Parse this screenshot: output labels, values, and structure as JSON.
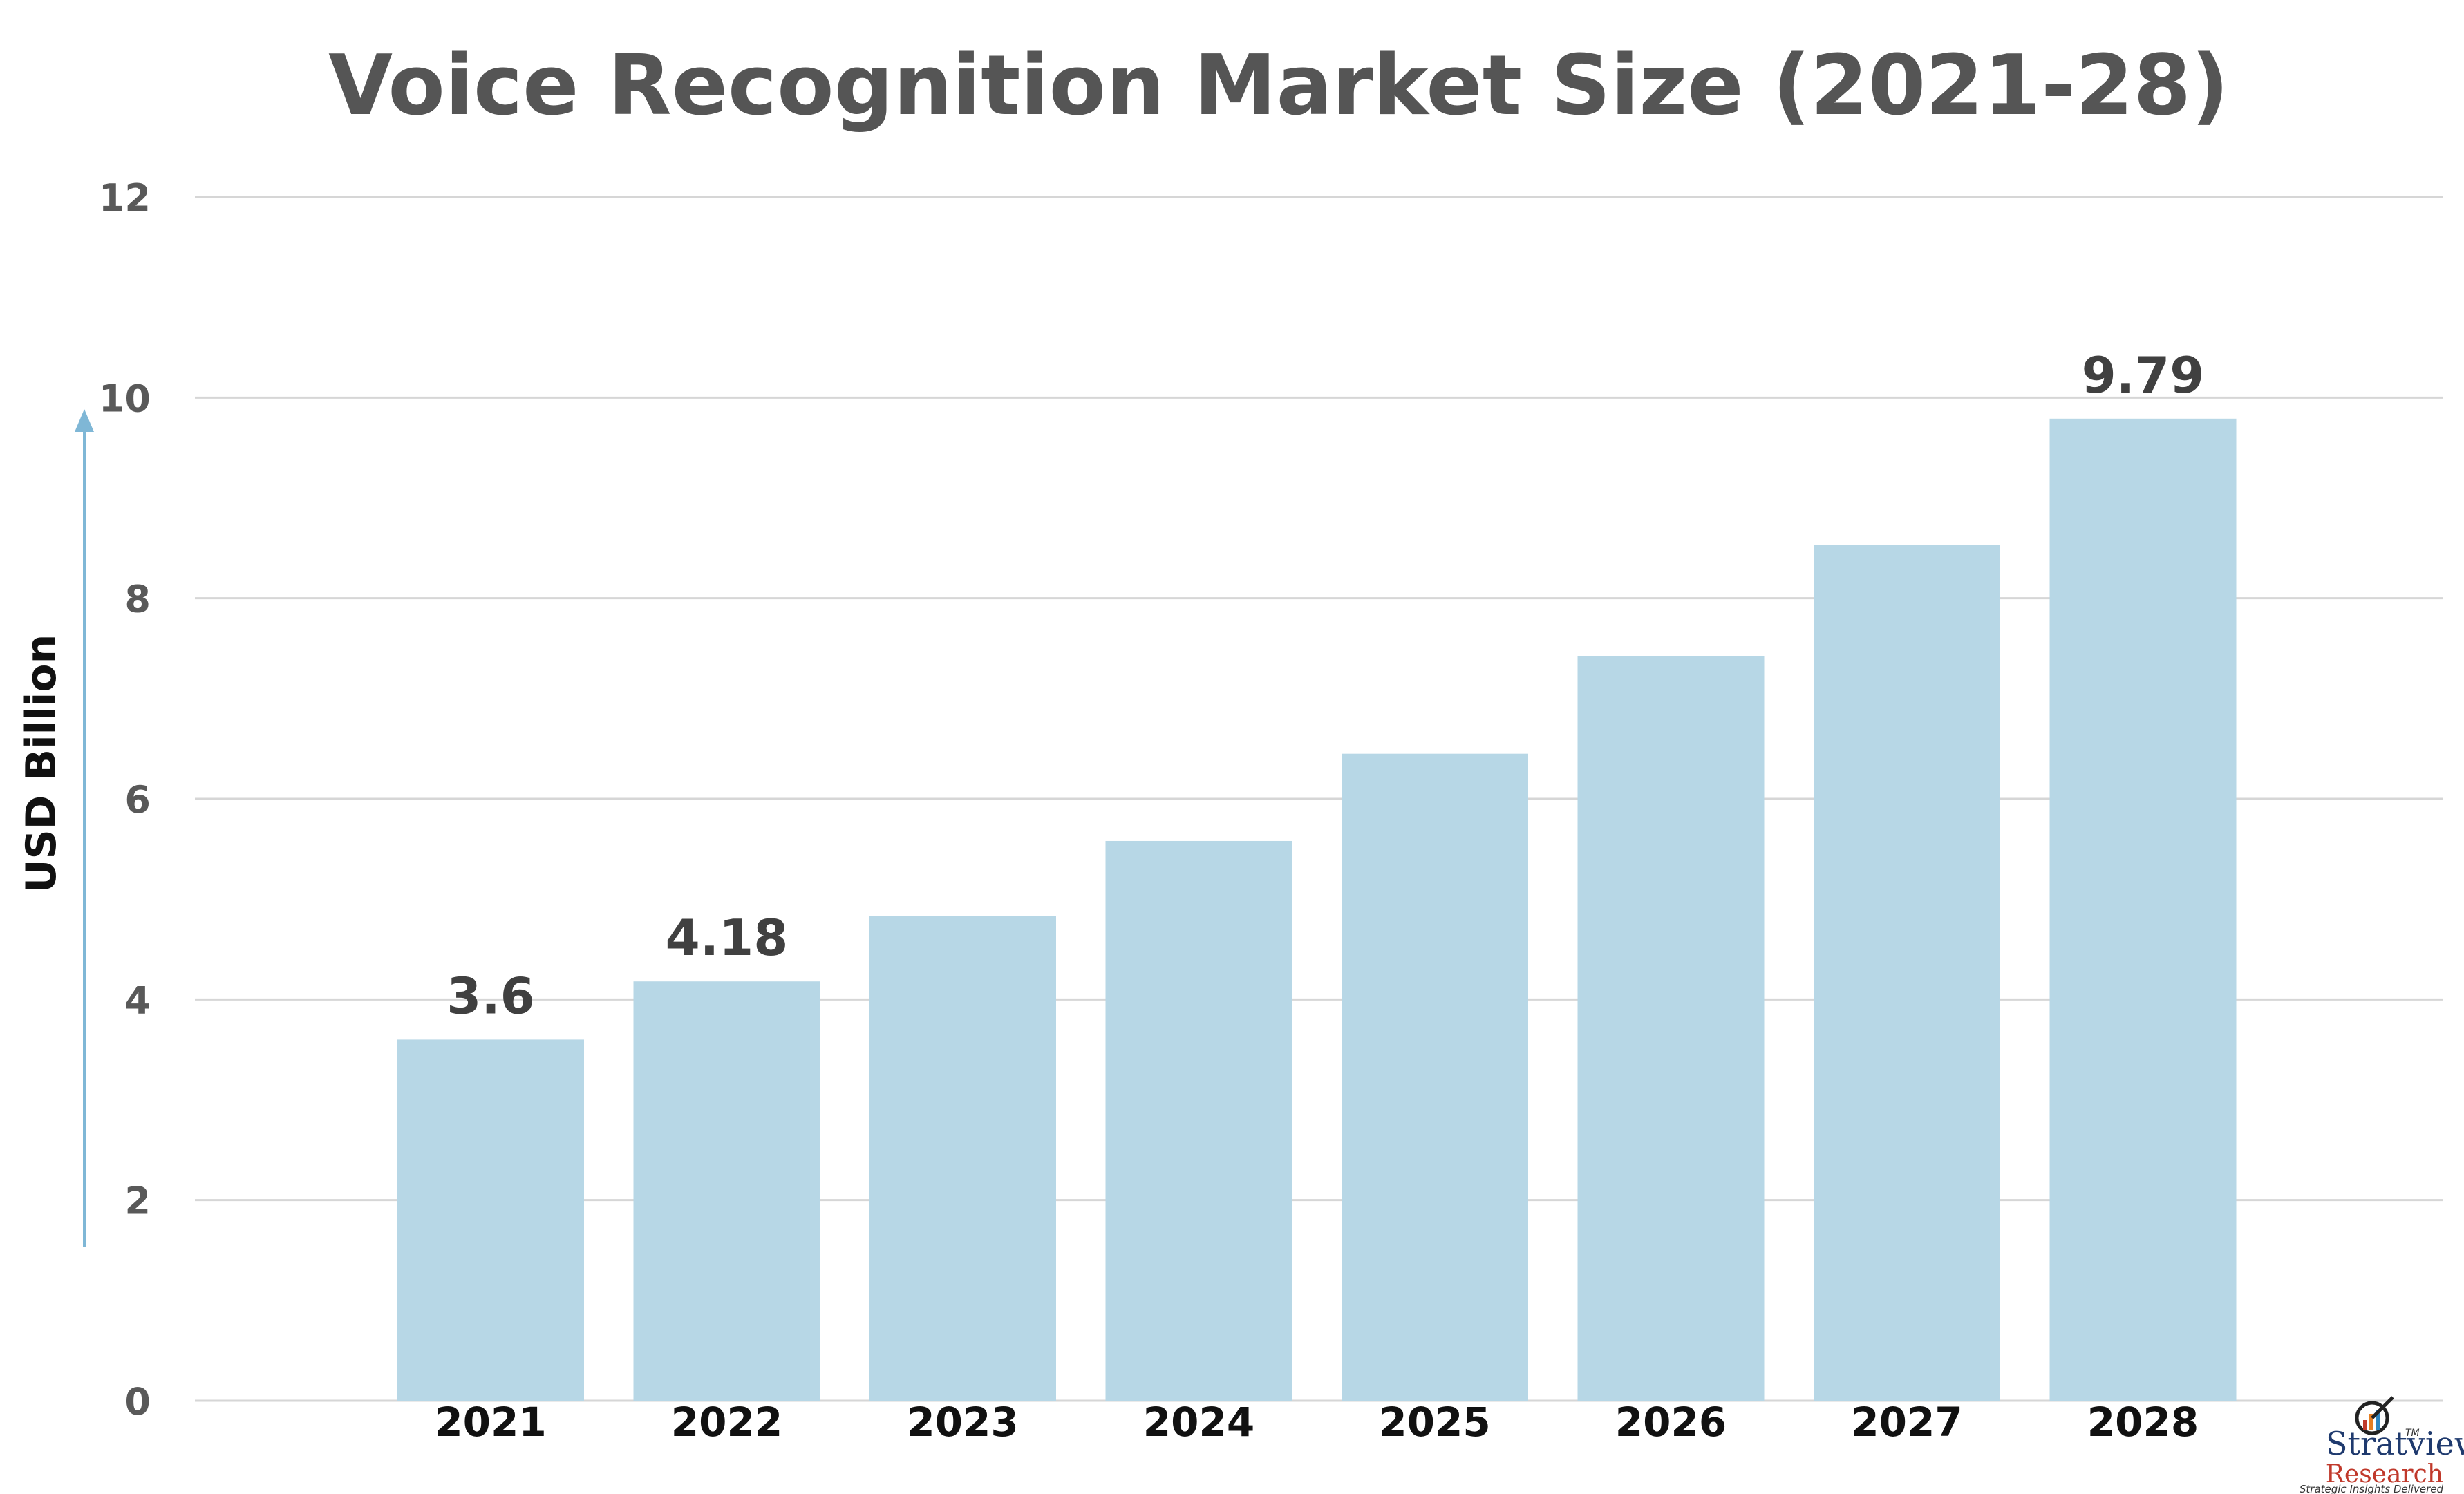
{
  "chart_data": {
    "type": "bar",
    "title": "Voice Recognition Market Size (2021-28)",
    "ylabel": "USD Billion",
    "xlabel": "",
    "categories": [
      "2021",
      "2022",
      "2023",
      "2024",
      "2025",
      "2026",
      "2027",
      "2028"
    ],
    "values": [
      3.6,
      4.18,
      4.83,
      5.58,
      6.45,
      7.42,
      8.53,
      9.79
    ],
    "data_labels": [
      "3.6",
      "4.18",
      "",
      "",
      "",
      "",
      "",
      "9.79"
    ],
    "ylim": [
      0,
      12
    ],
    "yticks": [
      "0",
      "2",
      "4",
      "6",
      "8",
      "10",
      "12"
    ],
    "grid": true,
    "legend": "none",
    "colors": {
      "bar": "#b7d7e6",
      "title": "#555555",
      "grid": "#d6d6d6",
      "arrow": "#7fb7d6"
    }
  },
  "logo": {
    "name": "Stratview",
    "sub": "Research",
    "tm": "TM",
    "tagline": "Strategic Insights Delivered"
  }
}
